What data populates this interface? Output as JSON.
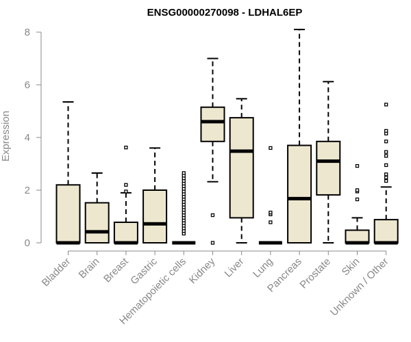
{
  "chart_data": {
    "type": "boxplot",
    "title": "ENSG00000270098 - LDHAL6EP",
    "xlabel": "",
    "ylabel": "Expression",
    "ylim": [
      0,
      8.2
    ],
    "yticks": [
      0,
      2,
      4,
      6,
      8
    ],
    "grid": false,
    "box_fill": "#ede7cf",
    "box_stroke": "#000000",
    "categories": [
      "Bladder",
      "Brain",
      "Breast",
      "Gastric",
      "Hematopoietic cells",
      "Kidney",
      "Liver",
      "Lung",
      "Pancreas",
      "Prostate",
      "Skin",
      "Unknown / Other"
    ],
    "boxes": [
      {
        "name": "Bladder",
        "min": 0,
        "q1": 0,
        "median": 0,
        "q3": 2.2,
        "max": 5.35,
        "outliers": []
      },
      {
        "name": "Brain",
        "min": 0,
        "q1": 0,
        "median": 0.42,
        "q3": 1.52,
        "max": 2.65,
        "outliers": []
      },
      {
        "name": "Breast",
        "min": 0,
        "q1": 0,
        "median": 0,
        "q3": 0.78,
        "max": 1.9,
        "outliers": [
          1.95,
          2.2,
          3.62
        ]
      },
      {
        "name": "Gastric",
        "min": 0,
        "q1": 0,
        "median": 0.72,
        "q3": 2.0,
        "max": 3.6,
        "outliers": []
      },
      {
        "name": "Hematopoietic cells",
        "min": 0,
        "q1": 0,
        "median": 0,
        "q3": 0,
        "max": 0,
        "outliers": [
          0.35,
          0.45,
          0.55,
          0.65,
          0.75,
          0.85,
          0.95,
          1.05,
          1.15,
          1.25,
          1.35,
          1.45,
          1.55,
          1.65,
          1.75,
          1.85,
          1.95,
          2.05,
          2.15,
          2.25,
          2.35,
          2.45,
          2.55,
          2.65
        ]
      },
      {
        "name": "Kidney",
        "min": 2.32,
        "q1": 3.85,
        "median": 4.6,
        "q3": 5.15,
        "max": 7.0,
        "outliers": [
          0,
          1.05
        ]
      },
      {
        "name": "Liver",
        "min": 0,
        "q1": 0.95,
        "median": 3.48,
        "q3": 4.75,
        "max": 5.47,
        "outliers": []
      },
      {
        "name": "Lung",
        "min": 0,
        "q1": 0,
        "median": 0,
        "q3": 0,
        "max": 0,
        "outliers": [
          0.78,
          1.08,
          1.15,
          3.6
        ]
      },
      {
        "name": "Pancreas",
        "min": 0,
        "q1": 0,
        "median": 1.68,
        "q3": 3.7,
        "max": 8.1,
        "outliers": []
      },
      {
        "name": "Prostate",
        "min": 0,
        "q1": 1.82,
        "median": 3.1,
        "q3": 3.85,
        "max": 6.12,
        "outliers": []
      },
      {
        "name": "Skin",
        "min": 0,
        "q1": 0,
        "median": 0,
        "q3": 0.48,
        "max": 0.95,
        "outliers": [
          1.65,
          1.95,
          2.0,
          2.92
        ]
      },
      {
        "name": "Unknown / Other",
        "min": 0,
        "q1": 0,
        "median": 0,
        "q3": 0.88,
        "max": 2.12,
        "outliers": [
          2.35,
          2.48,
          2.6,
          2.95,
          3.3,
          3.45,
          3.85,
          4.15,
          4.25,
          5.25
        ]
      }
    ]
  }
}
